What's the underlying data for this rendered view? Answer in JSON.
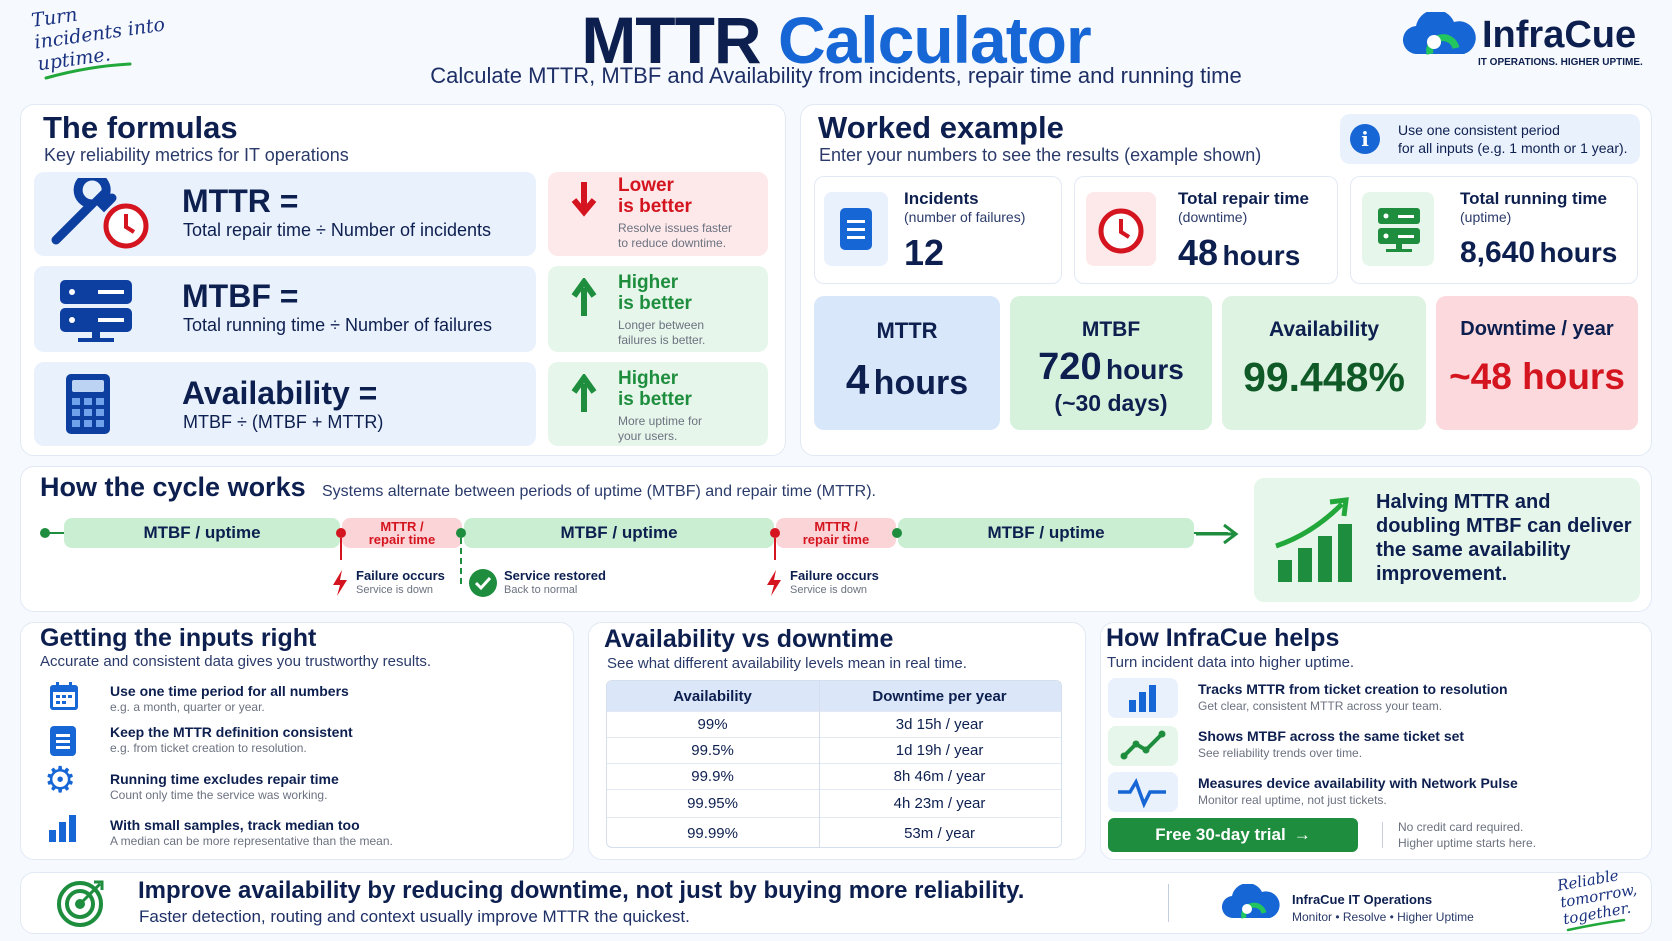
{
  "header": {
    "tagline": [
      "Turn",
      "incidents into",
      "uptime."
    ],
    "title_part1": "MTTR",
    "title_part2": "Calculator",
    "subtitle": "Calculate MTTR, MTBF and Availability from incidents, repair time and running time",
    "brand_name": "InfraCue",
    "brand_tagline": "IT OPERATIONS. HIGHER UPTIME."
  },
  "formulas": {
    "title": "The formulas",
    "subtitle": "Key reliability metrics for IT operations",
    "items": [
      {
        "name": "MTTR =",
        "formula": "Total repair time ÷ Number of incidents",
        "direction": "Lower",
        "direction2": "is better",
        "note1": "Resolve issues faster",
        "note2": "to reduce downtime."
      },
      {
        "name": "MTBF =",
        "formula": "Total running time ÷ Number of failures",
        "direction": "Higher",
        "direction2": "is better",
        "note1": "Longer between",
        "note2": "failures is better."
      },
      {
        "name": "Availability =",
        "formula": "MTBF ÷ (MTBF + MTTR)",
        "direction": "Higher",
        "direction2": "is better",
        "note1": "More uptime for",
        "note2": "your users."
      }
    ]
  },
  "example": {
    "title": "Worked example",
    "subtitle": "Enter your numbers to see the results (example shown)",
    "info1": "Use one consistent period",
    "info2": "for all inputs (e.g. 1 month or 1 year).",
    "inputs": [
      {
        "label": "Incidents",
        "sublabel": "(number of failures)",
        "value": "12",
        "unit": ""
      },
      {
        "label": "Total repair time",
        "sublabel": "(downtime)",
        "value": "48",
        "unit": "hours"
      },
      {
        "label": "Total running time",
        "sublabel": "(uptime)",
        "value": "8,640",
        "unit": "hours"
      }
    ],
    "results": [
      {
        "label": "MTTR",
        "value": "4",
        "unit": "hours",
        "extra": ""
      },
      {
        "label": "MTBF",
        "value": "720",
        "unit": "hours",
        "extra": "(~30 days)"
      },
      {
        "label": "Availability",
        "value": "99.448%",
        "unit": "",
        "extra": ""
      },
      {
        "label": "Downtime / year",
        "value": "~48 hours",
        "unit": "",
        "extra": ""
      }
    ]
  },
  "cycle": {
    "title": "How the cycle works",
    "subtitle": "Systems alternate between periods of uptime (MTBF) and repair time (MTTR).",
    "uptime_label": "MTBF / uptime",
    "repair_label1": "MTTR /",
    "repair_label2": "repair time",
    "failure_label": "Failure occurs",
    "failure_sub": "Service is down",
    "restored_label": "Service restored",
    "restored_sub": "Back to normal",
    "callout": [
      "Halving MTTR and",
      "doubling MTBF can deliver",
      "the same availability",
      "improvement."
    ]
  },
  "inputs_right": {
    "title": "Getting the inputs right",
    "subtitle": "Accurate and consistent data gives you trustworthy results.",
    "tips": [
      {
        "icon": "calendar-icon",
        "title": "Use one time period for all numbers",
        "sub": "e.g. a month, quarter or year."
      },
      {
        "icon": "document-icon",
        "title": "Keep the MTTR definition consistent",
        "sub": "e.g. from ticket creation to resolution."
      },
      {
        "icon": "gear-icon",
        "title": "Running time excludes repair time",
        "sub": "Count only time the service was working."
      },
      {
        "icon": "bar-chart-icon",
        "title": "With small samples, track median too",
        "sub": "A median can be more representative than the mean."
      }
    ]
  },
  "avail_table": {
    "title": "Availability vs downtime",
    "subtitle": "See what different availability levels mean in real time.",
    "headers": [
      "Availability",
      "Downtime per year"
    ],
    "rows": [
      [
        "99%",
        "3d 15h  / year"
      ],
      [
        "99.5%",
        "1d 19h  / year"
      ],
      [
        "99.9%",
        "8h 46m  / year"
      ],
      [
        "99.95%",
        "4h 23m  / year"
      ],
      [
        "99.99%",
        "53m  / year"
      ]
    ]
  },
  "helps": {
    "title": "How InfraCue helps",
    "subtitle": "Turn incident data into higher uptime.",
    "items": [
      {
        "icon": "bar-chart-icon",
        "title": "Tracks MTTR from ticket creation to resolution",
        "sub": "Get clear, consistent MTTR across your team."
      },
      {
        "icon": "trend-line-icon",
        "title": "Shows MTBF across the same ticket set",
        "sub": "See reliability trends over time."
      },
      {
        "icon": "pulse-icon",
        "title": "Measures device availability with Network Pulse",
        "sub": "Monitor real uptime, not just tickets."
      }
    ],
    "cta": "Free 30-day trial",
    "note1": "No credit card required.",
    "note2": "Higher uptime starts here."
  },
  "footer": {
    "headline": "Improve availability by reducing downtime, not just by buying more reliability.",
    "sub": "Faster detection, routing and context usually improve MTTR the quickest.",
    "brand": "InfraCue IT Operations",
    "brand_sub": "Monitor  •  Resolve  •  Higher Uptime",
    "signoff": [
      "Reliable",
      "tomorrow,",
      "together."
    ]
  },
  "colors": {
    "navy": "#0d1f4f",
    "blue": "#1766d6",
    "green": "#1e8e3e",
    "red": "#d4141e"
  }
}
